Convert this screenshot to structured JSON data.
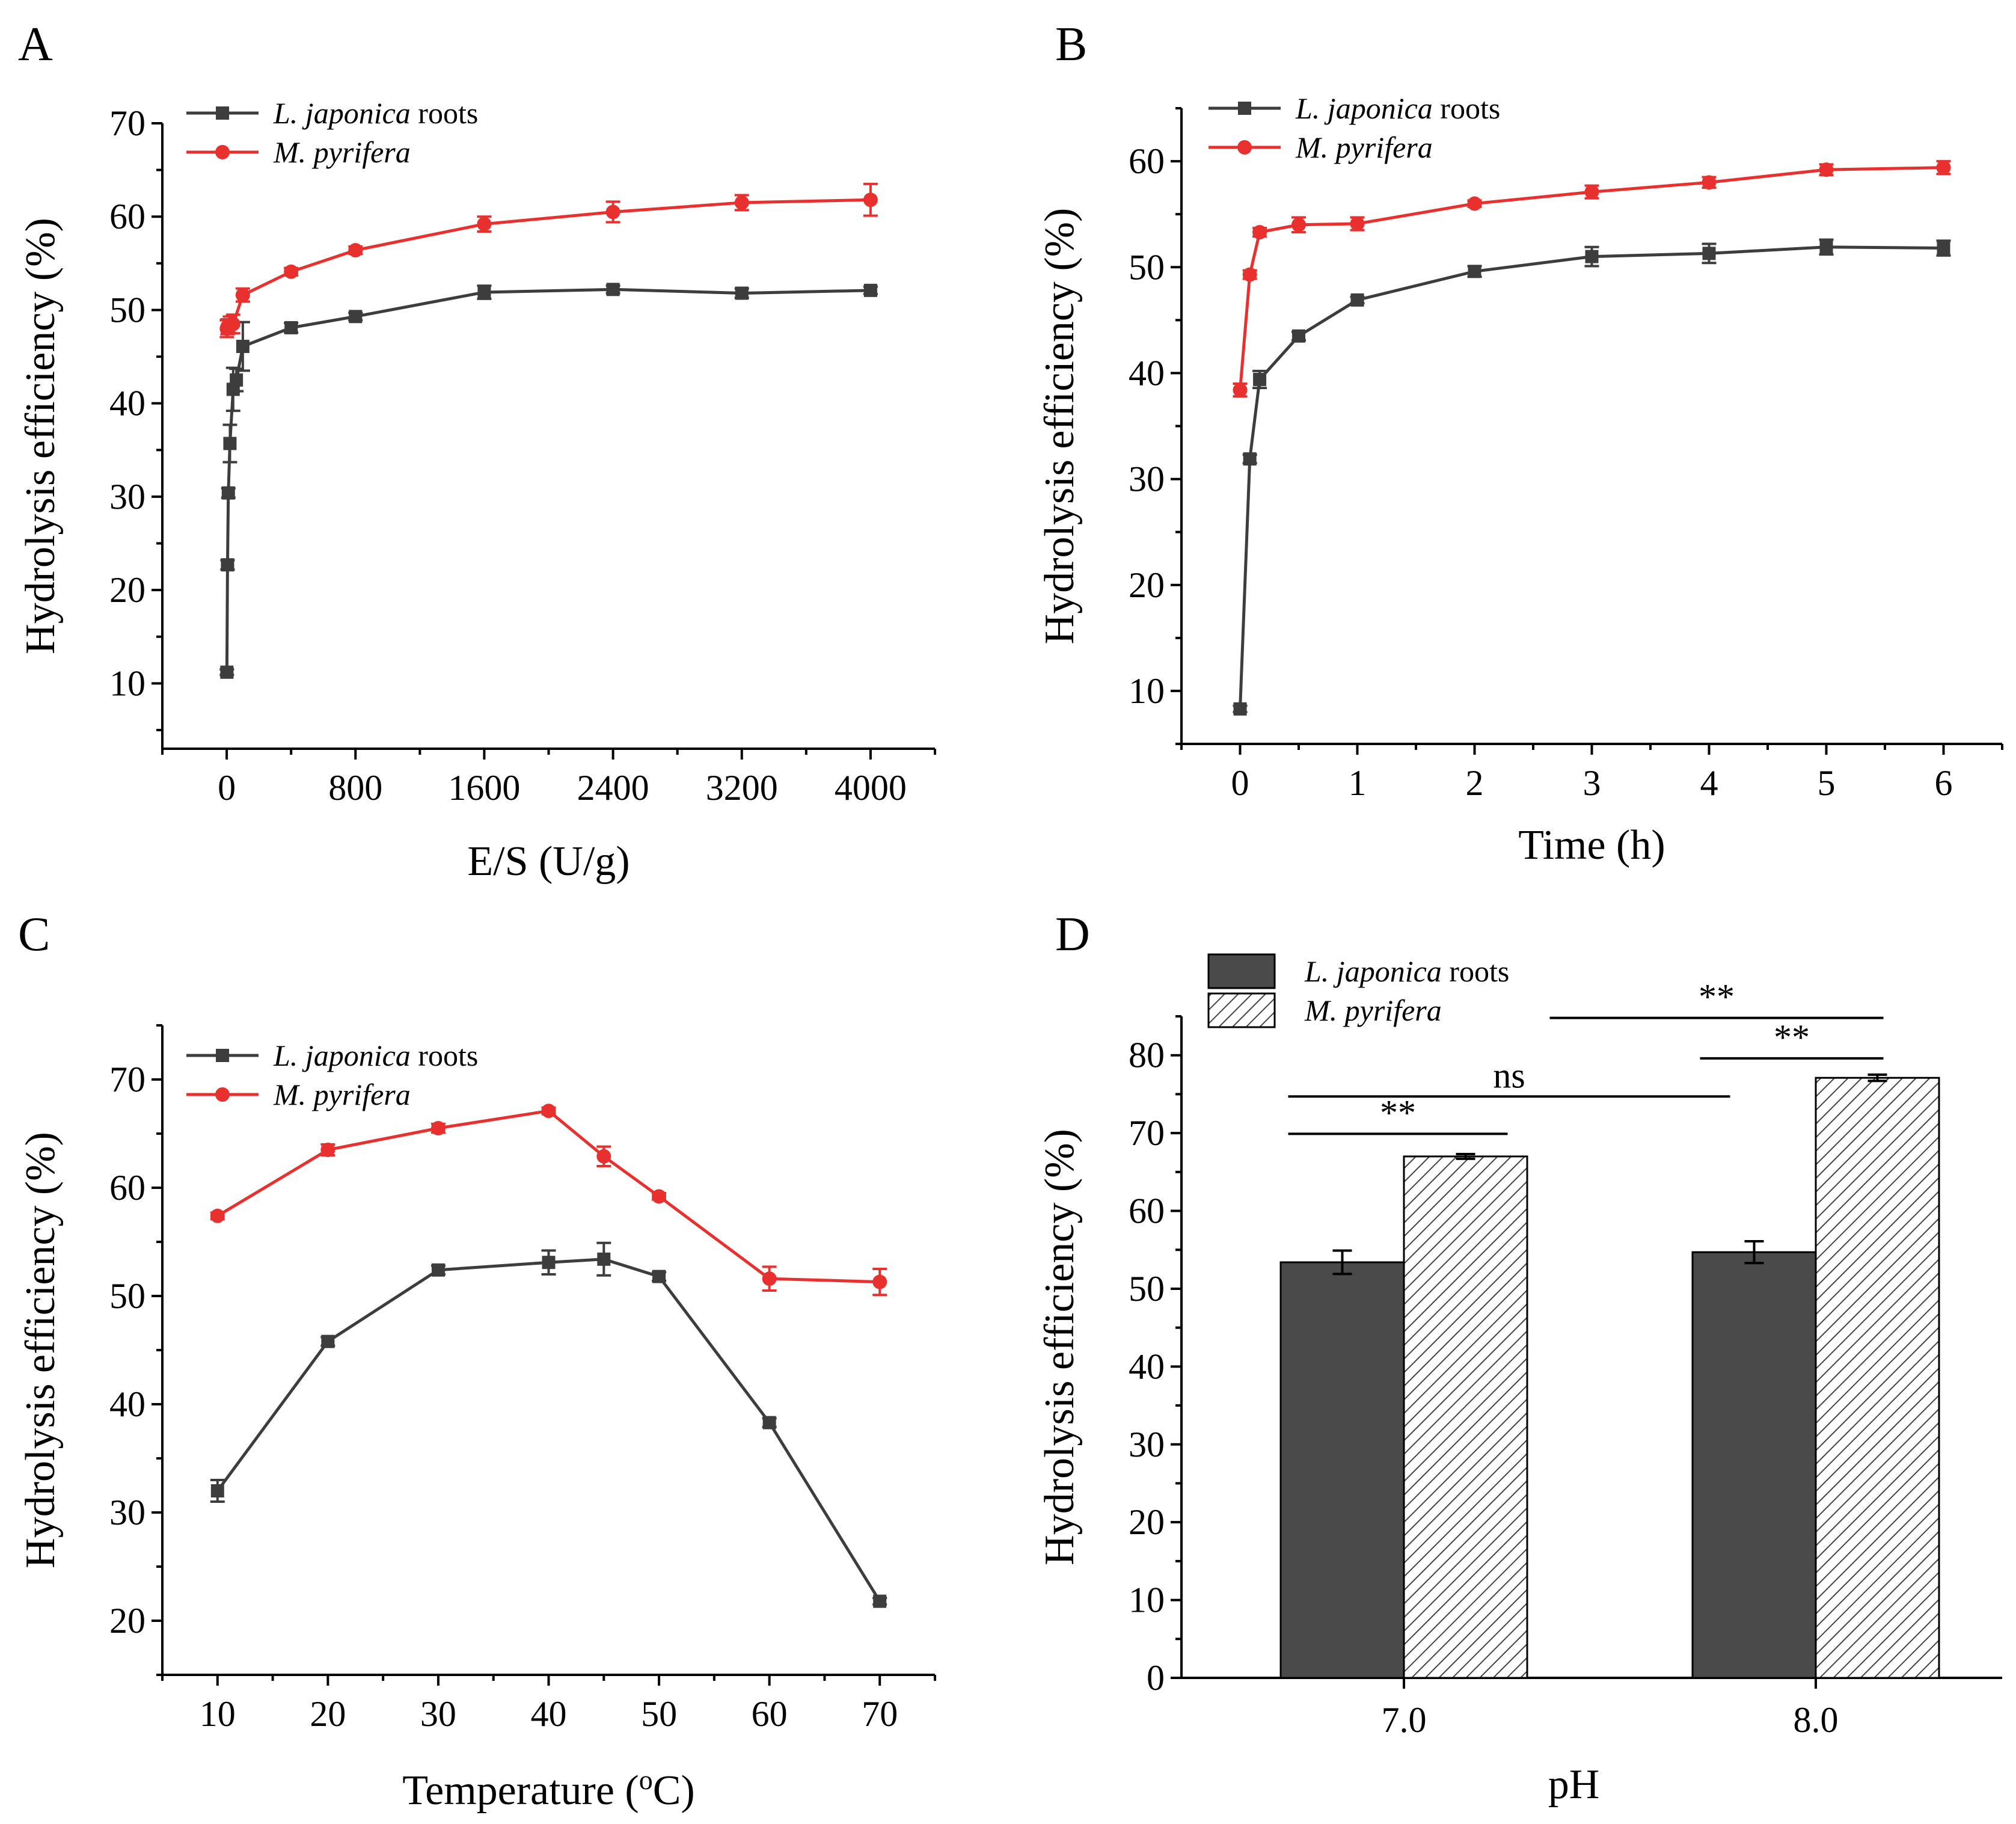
{
  "figure": {
    "colors": {
      "series_dark": "#3d3d3d",
      "series_red": "#e8312f",
      "axis": "#000000",
      "bar_dark": "#4a4a4a",
      "bar_hatch_bg": "#ffffff",
      "bar_hatch_line": "#444444"
    }
  },
  "chart_data": [
    {
      "id": "A",
      "panel_label": "A",
      "type": "line",
      "xlabel": "E/S (U/g)",
      "ylabel": "Hydrolysis efficiency (%)",
      "xlim": [
        -400,
        4400
      ],
      "ylim": [
        3,
        70
      ],
      "xticks": [
        0,
        800,
        1600,
        2400,
        3200,
        4000
      ],
      "xticklabels": [
        "0",
        "800",
        "1600",
        "2400",
        "3200",
        "4000"
      ],
      "xminor": 400,
      "yticks": [
        10,
        20,
        30,
        40,
        50,
        60,
        70
      ],
      "yticklabels": [
        "10",
        "20",
        "30",
        "40",
        "50",
        "60",
        "70"
      ],
      "yminor": 5,
      "legend_position": "top-left",
      "series": [
        {
          "name": "L. japonica roots",
          "name_italic": "L. japonica",
          "name_suffix": " roots",
          "color": "#3d3d3d",
          "marker": "square",
          "x": [
            1,
            5,
            10,
            20,
            40,
            60,
            100,
            400,
            800,
            1600,
            2400,
            3200,
            4000
          ],
          "y": [
            11.2,
            22.7,
            30.4,
            35.7,
            41.5,
            42.5,
            46.1,
            48.1,
            49.3,
            51.9,
            52.2,
            51.8,
            52.1
          ],
          "err": [
            0.3,
            0.5,
            0.5,
            2.0,
            2.3,
            1.2,
            2.6,
            0.5,
            0.4,
            0.7,
            0.4,
            0.5,
            0.4
          ]
        },
        {
          "name": "M. pyrifera",
          "name_italic": "M. pyrifera",
          "name_suffix": "",
          "color": "#e8312f",
          "marker": "circle",
          "x": [
            1,
            5,
            10,
            20,
            40,
            100,
            400,
            800,
            1600,
            2400,
            3200,
            4000
          ],
          "y": [
            48.0,
            48.2,
            48.3,
            48.4,
            48.5,
            51.6,
            54.1,
            56.4,
            59.2,
            60.5,
            61.5,
            61.8
          ],
          "err": [
            0.9,
            0.8,
            0.7,
            0.9,
            1.0,
            0.7,
            0.4,
            0.4,
            0.8,
            1.1,
            0.8,
            1.7
          ]
        }
      ]
    },
    {
      "id": "B",
      "panel_label": "B",
      "type": "line",
      "xlabel": "Time (h)",
      "ylabel": "Hydrolysis efficiency (%)",
      "xlim": [
        -0.5,
        6.5
      ],
      "ylim": [
        5,
        65
      ],
      "xticks": [
        0,
        1,
        2,
        3,
        4,
        5,
        6
      ],
      "xticklabels": [
        "0",
        "1",
        "2",
        "3",
        "4",
        "5",
        "6"
      ],
      "xminor": 0.5,
      "yticks": [
        10,
        20,
        30,
        40,
        50,
        60
      ],
      "yticklabels": [
        "10",
        "20",
        "30",
        "40",
        "50",
        "60"
      ],
      "yminor": 5,
      "legend_position": "top-left",
      "series": [
        {
          "name": "L. japonica roots",
          "name_italic": "L. japonica",
          "name_suffix": " roots",
          "color": "#3d3d3d",
          "marker": "square",
          "x": [
            0,
            0.083,
            0.167,
            0.5,
            1,
            2,
            3,
            4,
            5,
            6
          ],
          "y": [
            8.3,
            31.9,
            39.4,
            43.5,
            46.9,
            49.6,
            51.0,
            51.3,
            51.9,
            51.8
          ],
          "err": [
            0.3,
            0.4,
            0.8,
            0.4,
            0.3,
            0.5,
            0.9,
            0.9,
            0.7,
            0.7
          ]
        },
        {
          "name": "M. pyrifera",
          "name_italic": "M. pyrifera",
          "name_suffix": "",
          "color": "#e8312f",
          "marker": "circle",
          "x": [
            0,
            0.083,
            0.167,
            0.5,
            1,
            2,
            3,
            4,
            5,
            6
          ],
          "y": [
            38.4,
            49.3,
            53.3,
            54.0,
            54.1,
            56.0,
            57.1,
            58.0,
            59.2,
            59.4
          ],
          "err": [
            0.6,
            0.4,
            0.4,
            0.7,
            0.6,
            0.3,
            0.6,
            0.5,
            0.5,
            0.6
          ]
        }
      ]
    },
    {
      "id": "C",
      "panel_label": "C",
      "type": "line",
      "xlabel": "Temperature (°C)",
      "xlabel_pre": "Temperature (",
      "xlabel_sup": "o",
      "xlabel_post": "C)",
      "ylabel": "Hydrolysis efficiency (%)",
      "xlim": [
        5,
        75
      ],
      "ylim": [
        15,
        75
      ],
      "xticks": [
        10,
        20,
        30,
        40,
        50,
        60,
        70
      ],
      "xticklabels": [
        "10",
        "20",
        "30",
        "40",
        "50",
        "60",
        "70"
      ],
      "xminor": 5,
      "yticks": [
        20,
        30,
        40,
        50,
        60,
        70
      ],
      "yticklabels": [
        "20",
        "30",
        "40",
        "50",
        "60",
        "70"
      ],
      "yminor": 5,
      "legend_position": "top-left",
      "series": [
        {
          "name": "L. japonica roots",
          "name_italic": "L. japonica",
          "name_suffix": " roots",
          "color": "#3d3d3d",
          "marker": "square",
          "x": [
            10,
            20,
            30,
            40,
            45,
            50,
            60,
            70
          ],
          "y": [
            32.0,
            45.8,
            52.4,
            53.1,
            53.4,
            51.8,
            38.3,
            21.8
          ],
          "err": [
            1.0,
            0.4,
            0.4,
            1.1,
            1.5,
            0.4,
            0.4,
            0.3
          ]
        },
        {
          "name": "M. pyrifera",
          "name_italic": "M. pyrifera",
          "name_suffix": "",
          "color": "#e8312f",
          "marker": "circle",
          "x": [
            10,
            20,
            30,
            40,
            45,
            50,
            60,
            70
          ],
          "y": [
            57.4,
            63.5,
            65.5,
            67.1,
            62.9,
            59.2,
            51.6,
            51.3
          ],
          "err": [
            0.3,
            0.5,
            0.4,
            0.3,
            0.9,
            0.3,
            1.1,
            1.2
          ]
        }
      ]
    },
    {
      "id": "D",
      "panel_label": "D",
      "type": "bar",
      "xlabel": "pH",
      "ylabel": "Hydrolysis efficiency (%)",
      "ylim": [
        0,
        85
      ],
      "yticks": [
        0,
        10,
        20,
        30,
        40,
        50,
        60,
        70,
        80
      ],
      "yticklabels": [
        "0",
        "10",
        "20",
        "30",
        "40",
        "50",
        "60",
        "70",
        "80"
      ],
      "yminor": 5,
      "categories": [
        "7.0",
        "8.0"
      ],
      "legend_position": "top-left",
      "series": [
        {
          "name": "L. japonica roots",
          "name_italic": "L. japonica",
          "name_suffix": " roots",
          "fill": "solid",
          "values": [
            53.4,
            54.7
          ],
          "err": [
            1.5,
            1.4
          ]
        },
        {
          "name": "M. pyrifera",
          "name_italic": "M. pyrifera",
          "name_suffix": "",
          "fill": "hatched",
          "values": [
            67.0,
            77.1
          ],
          "err": [
            0.3,
            0.4
          ]
        }
      ],
      "annotations": [
        {
          "text": "**",
          "y": 69.9
        },
        {
          "text": "**",
          "y": 79.6
        },
        {
          "text": "ns",
          "y": 74.7
        },
        {
          "text": "**",
          "y": 84.8
        }
      ]
    }
  ]
}
